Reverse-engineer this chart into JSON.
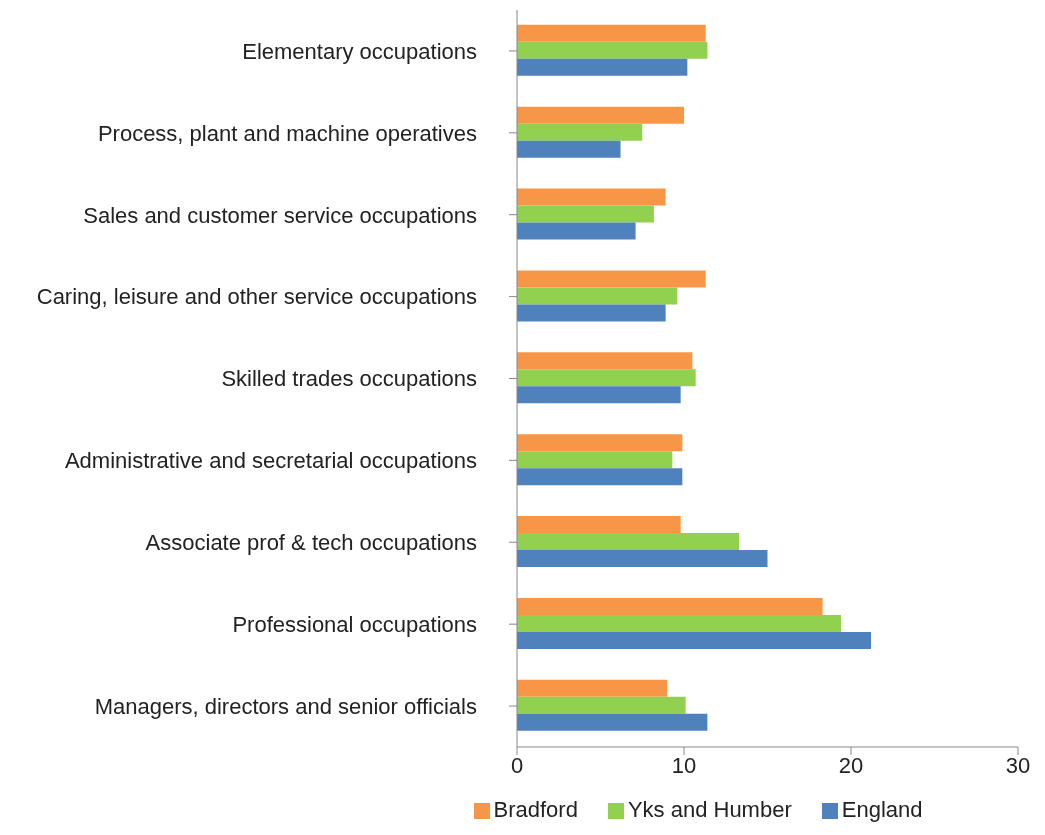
{
  "chart_data": {
    "type": "bar",
    "orientation": "horizontal",
    "categories": [
      "Elementary occupations",
      "Process, plant and machine operatives",
      "Sales and customer service occupations",
      "Caring, leisure and other service occupations",
      "Skilled trades occupations",
      "Administrative and secretarial occupations",
      "Associate prof & tech occupations",
      "Professional occupations",
      "Managers, directors and senior officials"
    ],
    "series": [
      {
        "name": "Bradford",
        "color": "#f79646",
        "values": [
          11.3,
          10.0,
          8.9,
          11.3,
          10.5,
          9.9,
          9.8,
          18.3,
          9.0
        ]
      },
      {
        "name": "Yks and Humber",
        "color": "#92d050",
        "values": [
          11.4,
          7.5,
          8.2,
          9.6,
          10.7,
          9.3,
          13.3,
          19.4,
          10.1
        ]
      },
      {
        "name": "England",
        "color": "#4f81bd",
        "values": [
          10.2,
          6.2,
          7.1,
          8.9,
          9.8,
          9.9,
          15.0,
          21.2,
          11.4
        ]
      }
    ],
    "xlim": [
      0,
      30
    ],
    "xticks": [
      0,
      10,
      20,
      30
    ],
    "grid": false,
    "legend": "bottom"
  }
}
